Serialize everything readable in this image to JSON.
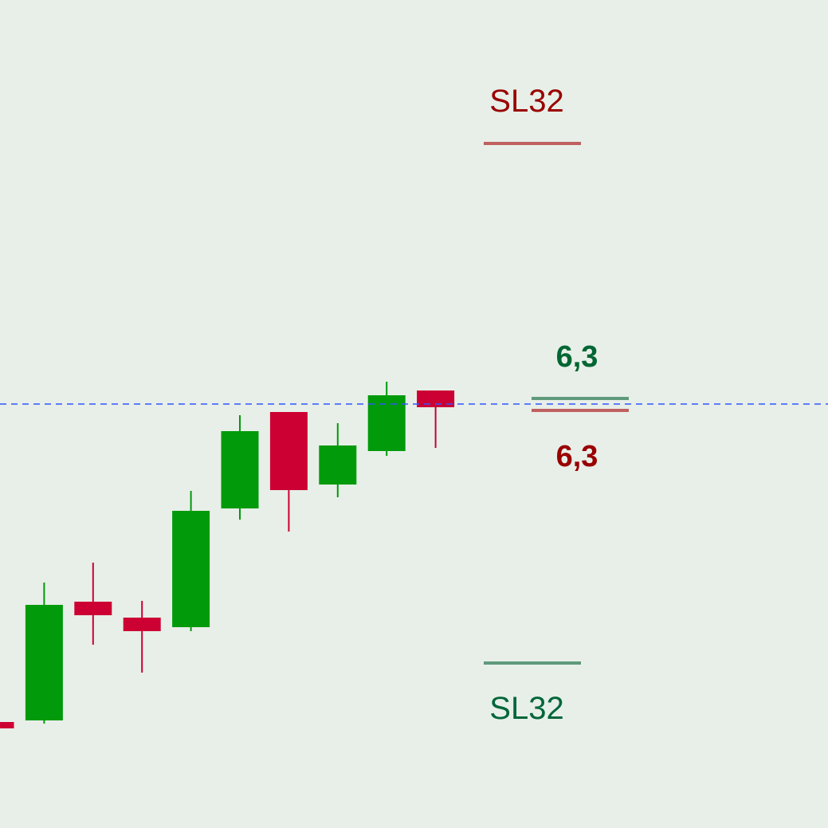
{
  "chart_data": {
    "type": "candlestick",
    "ylim": [
      0,
      1039
    ],
    "background": "#e7efe8",
    "colors": {
      "bull": "#009a0a",
      "bear": "#cc0033",
      "price_line": "#3355ff",
      "upper_sl_line": "#c06060",
      "lower_sl_line": "#5f9a7c",
      "upper_sl_text": "#990000",
      "lower_sl_text": "#00663a",
      "upper_value_text": "#006633",
      "lower_value_text": "#990000"
    },
    "candles": [
      {
        "open": 133,
        "high": 133,
        "low": 125,
        "close": 125
      },
      {
        "open": 135,
        "high": 308,
        "low": 131,
        "close": 280
      },
      {
        "open": 284,
        "high": 333,
        "low": 230,
        "close": 267
      },
      {
        "open": 264,
        "high": 285,
        "low": 195,
        "close": 247
      },
      {
        "open": 252,
        "high": 423,
        "low": 247,
        "close": 398
      },
      {
        "open": 401,
        "high": 518,
        "low": 387,
        "close": 498
      },
      {
        "open": 522,
        "high": 522,
        "low": 372,
        "close": 424
      },
      {
        "open": 431,
        "high": 508,
        "low": 415,
        "close": 480
      },
      {
        "open": 473,
        "high": 560,
        "low": 467,
        "close": 543
      },
      {
        "open": 549,
        "high": 549,
        "low": 477,
        "close": 528
      }
    ],
    "current_price": 532,
    "levels": {
      "upper_sl": {
        "label": "SL32",
        "value": 859
      },
      "lower_sl": {
        "label": "SL32",
        "value": 207
      },
      "upper_target": {
        "label": "6,3",
        "value": 539
      },
      "lower_target": {
        "label": "6,3",
        "value": 524
      }
    }
  }
}
